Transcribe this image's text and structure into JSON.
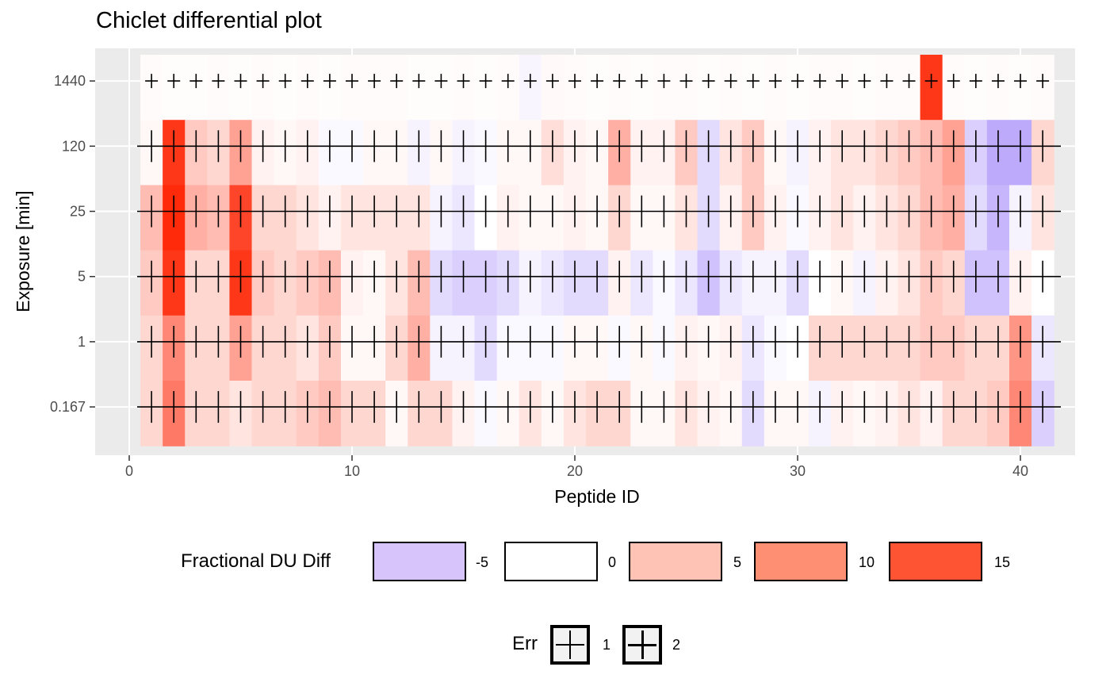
{
  "title": "Chiclet differential plot",
  "chart_data": {
    "type": "heatmap",
    "title": "Chiclet differential plot",
    "xlabel": "Peptide ID",
    "ylabel": "Exposure [min]",
    "x_ticks": [
      "0",
      "10",
      "20",
      "30",
      "40"
    ],
    "x_tick_values": [
      0,
      10,
      20,
      30,
      40
    ],
    "y_categories": [
      "0.167",
      "1",
      "5",
      "25",
      "120",
      "1440"
    ],
    "xlim": [
      -0.5,
      42
    ],
    "peptide_count": 41,
    "grid": true,
    "colors": {
      "low": "#6A3DF5",
      "mid": "#FFFFFF",
      "high": "#FF2A0A",
      "panel": "#EBEBEB",
      "gridline": "#FFFFFF"
    },
    "values": {
      "1440": [
        0.3,
        0.2,
        0.2,
        0.3,
        0.2,
        0.3,
        0.2,
        0.3,
        0.2,
        0.3,
        0.3,
        0.3,
        0.2,
        0.2,
        0.3,
        0.2,
        0.3,
        -0.8,
        0.4,
        0.3,
        0.2,
        0.3,
        0.2,
        0.3,
        0.3,
        0.2,
        0.3,
        0.2,
        0.3,
        0.2,
        0.3,
        0.3,
        0.2,
        0.3,
        0.3,
        15,
        0.3,
        0.2,
        0.3,
        0.2,
        0.3
      ],
      "120": [
        0.5,
        15,
        4,
        3,
        7,
        1,
        0.5,
        1,
        -0.5,
        -0.5,
        0.5,
        0.5,
        -1,
        0.5,
        -1,
        -0.5,
        0.5,
        0.5,
        2.5,
        1,
        0.5,
        6,
        1,
        1,
        4,
        -3,
        2,
        4,
        0.5,
        -1,
        1,
        2,
        2,
        3,
        4,
        5,
        7,
        -4,
        -7,
        -7,
        3
      ],
      "25": [
        5,
        17,
        6,
        5,
        14,
        3,
        3,
        2,
        1,
        2,
        2,
        2,
        2,
        -1,
        -2,
        0,
        1,
        0.5,
        0.5,
        1,
        0.5,
        3,
        0.5,
        0.5,
        2,
        -3,
        1,
        4,
        1,
        -0.5,
        1,
        2,
        1,
        2,
        3,
        5,
        6,
        -3,
        -6,
        -1,
        2
      ],
      "5": [
        4,
        15,
        3,
        3,
        15,
        4,
        3,
        4,
        5,
        1,
        0.5,
        2,
        5,
        -3,
        -4,
        -4,
        -3,
        -1,
        -2,
        -3,
        -3,
        1,
        -2,
        -0.5,
        -2,
        -5,
        -2,
        -1,
        -1,
        -3,
        0,
        0.5,
        -1,
        1,
        2,
        4,
        3,
        -5,
        -5,
        1,
        0
      ],
      "1": [
        3,
        9,
        3,
        3,
        7,
        3,
        3,
        2,
        4,
        0.5,
        0.5,
        3,
        6,
        -1,
        -1,
        -3,
        -0.5,
        -0.5,
        -0.5,
        0.5,
        0.5,
        -0.5,
        0.5,
        -0.5,
        1,
        0.5,
        1,
        -2,
        -0.5,
        0,
        3,
        3,
        3,
        3,
        3,
        4,
        4,
        3,
        3,
        8,
        -2
      ],
      "0.167": [
        3,
        10,
        3,
        3,
        2,
        3,
        3,
        4,
        5,
        3,
        3,
        0.5,
        3,
        3,
        1,
        -0.5,
        0.5,
        2,
        0.5,
        2,
        3,
        3,
        0.5,
        0.5,
        2,
        1,
        0.5,
        -3,
        0.5,
        0.5,
        -1,
        1,
        0.5,
        1,
        2,
        1,
        3,
        3,
        4,
        9,
        -4
      ]
    },
    "error_sizes": [
      1,
      2
    ],
    "legend_position": "bottom"
  },
  "fill_legend": {
    "title": "Fractional DU Diff",
    "entries": [
      {
        "label": "-5",
        "color": "#D6C4FB"
      },
      {
        "label": "0",
        "color": "#FFFFFF"
      },
      {
        "label": "5",
        "color": "#FFC3B5"
      },
      {
        "label": "10",
        "color": "#FF8F73"
      },
      {
        "label": "15",
        "color": "#FF5433"
      }
    ]
  },
  "err_legend": {
    "title": "Err",
    "entries": [
      {
        "label": "1"
      },
      {
        "label": "2"
      }
    ]
  }
}
